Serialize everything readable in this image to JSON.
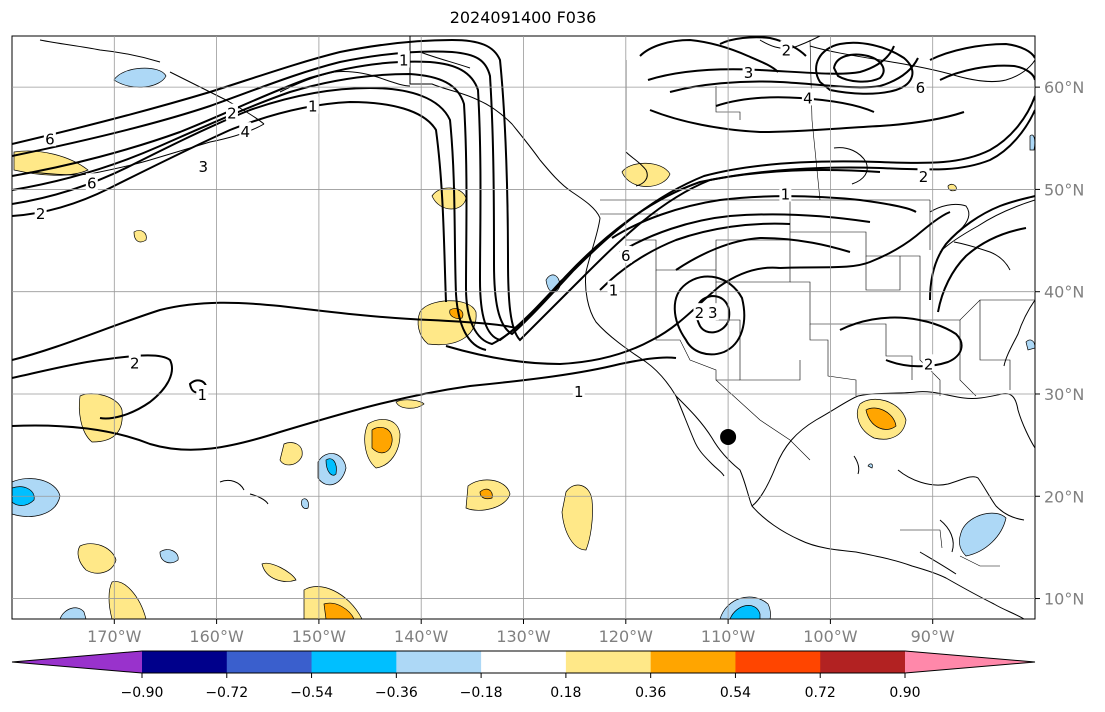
{
  "title": "2024091400 F036",
  "map": {
    "projection": "cylindrical lat-lon",
    "extent": {
      "lon": [
        -180,
        -80
      ],
      "lat": [
        8,
        65
      ]
    },
    "gridlines": true,
    "lon_ticks": [
      {
        "lon": -170,
        "label": "170°W"
      },
      {
        "lon": -160,
        "label": "160°W"
      },
      {
        "lon": -150,
        "label": "150°W"
      },
      {
        "lon": -140,
        "label": "140°W"
      },
      {
        "lon": -130,
        "label": "130°W"
      },
      {
        "lon": -120,
        "label": "120°W"
      },
      {
        "lon": -110,
        "label": "110°W"
      },
      {
        "lon": -100,
        "label": "100°W"
      },
      {
        "lon": -90,
        "label": "90°W"
      }
    ],
    "lat_ticks": [
      {
        "lat": 60,
        "label": "60°N"
      },
      {
        "lat": 50,
        "label": "50°N"
      },
      {
        "lat": 40,
        "label": "40°N"
      },
      {
        "lat": 30,
        "label": "30°N"
      },
      {
        "lat": 20,
        "label": "20°N"
      },
      {
        "lat": 10,
        "label": "10°N"
      }
    ],
    "marker": {
      "lon": -110,
      "lat": 25.8,
      "color": "#000000"
    },
    "contour_labels": [
      {
        "text": "6",
        "lon": -176.3,
        "lat": 54.9
      },
      {
        "text": "6",
        "lon": -172.2,
        "lat": 50.6
      },
      {
        "text": "2",
        "lon": -177.2,
        "lat": 47.6
      },
      {
        "text": "3",
        "lon": -161.3,
        "lat": 52.2
      },
      {
        "text": "4",
        "lon": -157.2,
        "lat": 55.6
      },
      {
        "text": "1",
        "lon": -150.6,
        "lat": 58.1
      },
      {
        "text": "1",
        "lon": -141.7,
        "lat": 62.6
      },
      {
        "text": "2",
        "lon": -158.5,
        "lat": 57.4
      },
      {
        "text": "2",
        "lon": -168,
        "lat": 33
      },
      {
        "text": "1",
        "lon": -161.4,
        "lat": 29.9
      },
      {
        "text": "1",
        "lon": -124.6,
        "lat": 30.2
      },
      {
        "text": "6",
        "lon": -120,
        "lat": 43.5
      },
      {
        "text": "1",
        "lon": -121.2,
        "lat": 40.1
      },
      {
        "text": "1",
        "lon": -104.4,
        "lat": 49.5
      },
      {
        "text": "2",
        "lon": -104.3,
        "lat": 63.6
      },
      {
        "text": "3",
        "lon": -108,
        "lat": 61.4
      },
      {
        "text": "4",
        "lon": -102.2,
        "lat": 58.9
      },
      {
        "text": "6",
        "lon": -91.2,
        "lat": 59.9
      },
      {
        "text": "2",
        "lon": -90.9,
        "lat": 51.2
      },
      {
        "text": "2",
        "lon": -112.8,
        "lat": 37.9
      },
      {
        "text": "3",
        "lon": -111.5,
        "lat": 37.9
      },
      {
        "text": "2",
        "lon": -90.4,
        "lat": 32.9
      }
    ]
  },
  "colorbar": {
    "colors": [
      "#9932cc",
      "#00008b",
      "#3a5fcd",
      "#00bfff",
      "#add8f6",
      "#ffffff",
      "#ffe888",
      "#ffa500",
      "#ff4500",
      "#b22222",
      "#ff88aa"
    ],
    "ticks": [
      "−0.90",
      "−0.72",
      "−0.54",
      "−0.36",
      "−0.18",
      "0.18",
      "0.36",
      "0.54",
      "0.72",
      "0.90"
    ]
  }
}
